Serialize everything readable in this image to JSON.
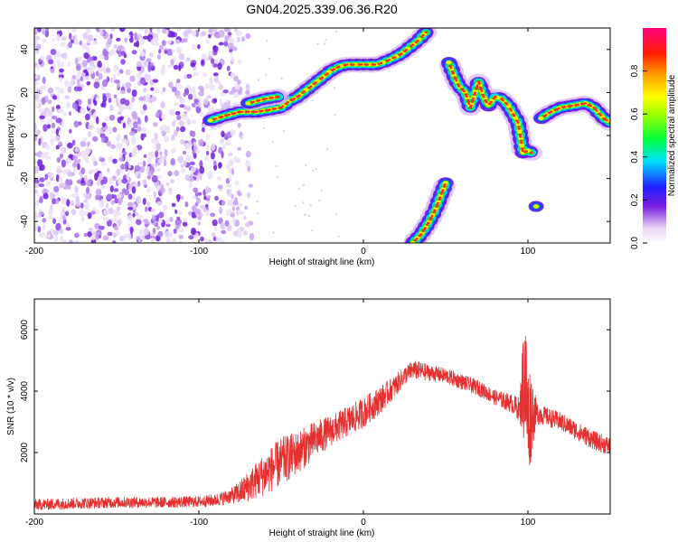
{
  "title": "GN04.2025.339.06.36.R20",
  "chart_data": [
    {
      "type": "heatmap",
      "title": "GN04.2025.339.06.36.R20",
      "xlabel": "Height of straight line (km)",
      "ylabel": "Frequency (Hz)",
      "xlim": [
        -200,
        150
      ],
      "ylim": [
        -50,
        50
      ],
      "xticks": [
        -200,
        -100,
        0,
        100
      ],
      "yticks": [
        -40,
        -20,
        0,
        20,
        40
      ],
      "colorbar": {
        "label": "Normalized spectral amplitude",
        "range": [
          0.0,
          1.0
        ],
        "ticks": [
          0.0,
          0.2,
          0.4,
          0.6,
          0.8
        ],
        "tick_labels": [
          "0.0",
          "0.2",
          "0.4",
          "0.6",
          "0.8"
        ]
      },
      "noise_region_km": [
        -200,
        -75
      ],
      "tracks": [
        {
          "name": "main-ascending",
          "points": [
            [
              -93,
              7
            ],
            [
              -85,
              9
            ],
            [
              -75,
              11
            ],
            [
              -65,
              11
            ],
            [
              -57,
              12
            ],
            [
              -50,
              13
            ],
            [
              -45,
              16
            ],
            [
              -40,
              18
            ],
            [
              -35,
              21
            ],
            [
              -30,
              24
            ],
            [
              -25,
              27
            ],
            [
              -20,
              30
            ],
            [
              -15,
              32
            ],
            [
              -10,
              33
            ],
            [
              0,
              33
            ],
            [
              8,
              33
            ],
            [
              12,
              34
            ],
            [
              18,
              36
            ],
            [
              23,
              38
            ],
            [
              28,
              41
            ],
            [
              33,
              44
            ],
            [
              38,
              48
            ]
          ]
        },
        {
          "name": "lower-blob",
          "points": [
            [
              -70,
              15
            ],
            [
              -60,
              17
            ],
            [
              -52,
              18
            ]
          ]
        },
        {
          "name": "upper-descending",
          "points": [
            [
              52,
              34
            ],
            [
              55,
              28
            ],
            [
              58,
              23
            ],
            [
              62,
              20
            ],
            [
              65,
              13
            ],
            [
              70,
              25
            ],
            [
              73,
              18
            ],
            [
              76,
              14
            ],
            [
              80,
              18
            ],
            [
              84,
              17
            ],
            [
              88,
              14
            ],
            [
              91,
              10
            ],
            [
              94,
              6
            ],
            [
              97,
              -8
            ],
            [
              100,
              -7
            ],
            [
              102,
              -8
            ]
          ]
        },
        {
          "name": "far-right",
          "points": [
            [
              108,
              8
            ],
            [
              114,
              11
            ],
            [
              120,
              13
            ],
            [
              128,
              14
            ],
            [
              135,
              15
            ],
            [
              140,
              13
            ],
            [
              146,
              8
            ],
            [
              150,
              6
            ]
          ]
        },
        {
          "name": "lower-ascending",
          "points": [
            [
              30,
              -50
            ],
            [
              35,
              -46
            ],
            [
              40,
              -40
            ],
            [
              44,
              -34
            ],
            [
              47,
              -28
            ],
            [
              50,
              -22
            ]
          ]
        },
        {
          "name": "isolated-dot",
          "points": [
            [
              105,
              -33
            ]
          ]
        }
      ]
    },
    {
      "type": "line",
      "xlabel": "Height of straight line (km)",
      "ylabel": "SNR (10 * v/v)",
      "xlim": [
        -200,
        150
      ],
      "ylim": [
        0,
        7000
      ],
      "xticks": [
        -200,
        -100,
        0,
        100
      ],
      "yticks": [
        2000,
        4000,
        6000
      ],
      "series": [
        {
          "name": "SNR",
          "color": "#e53030",
          "x": [
            -200,
            -175,
            -150,
            -125,
            -100,
            -90,
            -80,
            -75,
            -70,
            -60,
            -50,
            -40,
            -30,
            -20,
            -10,
            0,
            10,
            20,
            25,
            30,
            35,
            40,
            50,
            60,
            70,
            80,
            90,
            95,
            98,
            100,
            102,
            105,
            110,
            120,
            130,
            140,
            150
          ],
          "values": [
            300,
            350,
            380,
            380,
            400,
            450,
            600,
            700,
            900,
            1300,
            1700,
            2000,
            2400,
            2700,
            3000,
            3300,
            3700,
            4200,
            4500,
            4700,
            4650,
            4600,
            4500,
            4300,
            4100,
            3800,
            3600,
            3400,
            4600,
            3000,
            3300,
            3300,
            3200,
            3000,
            2700,
            2400,
            2200
          ],
          "amplitude": [
            180,
            180,
            180,
            180,
            180,
            200,
            250,
            400,
            500,
            700,
            800,
            700,
            600,
            500,
            500,
            500,
            450,
            350,
            300,
            300,
            300,
            250,
            250,
            250,
            250,
            250,
            300,
            400,
            2500,
            2000,
            1500,
            400,
            300,
            300,
            300,
            300,
            300
          ]
        }
      ]
    }
  ]
}
